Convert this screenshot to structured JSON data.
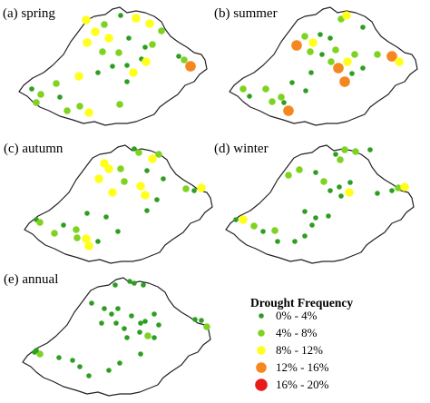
{
  "panels": [
    {
      "id": "spring",
      "label": "(a) spring",
      "stations": [
        [
          95,
          22,
          3
        ],
        [
          115,
          27,
          2
        ],
        [
          133,
          17,
          1
        ],
        [
          150,
          20,
          3
        ],
        [
          165,
          26,
          3
        ],
        [
          178,
          34,
          2
        ],
        [
          197,
          62,
          1
        ],
        [
          105,
          35,
          3
        ],
        [
          96,
          47,
          3
        ],
        [
          120,
          42,
          3
        ],
        [
          113,
          57,
          2
        ],
        [
          131,
          58,
          2
        ],
        [
          108,
          80,
          1
        ],
        [
          140,
          72,
          1
        ],
        [
          147,
          80,
          3
        ],
        [
          156,
          65,
          1
        ],
        [
          161,
          68,
          3
        ],
        [
          203,
          66,
          2
        ],
        [
          210,
          73,
          4
        ],
        [
          87,
          84,
          3
        ],
        [
          62,
          92,
          2
        ],
        [
          35,
          98,
          1
        ],
        [
          45,
          104,
          2
        ],
        [
          40,
          113,
          2
        ],
        [
          66,
          107,
          1
        ],
        [
          74,
          122,
          2
        ],
        [
          88,
          117,
          2
        ],
        [
          98,
          124,
          3
        ],
        [
          132,
          115,
          2
        ],
        [
          160,
          52,
          1
        ],
        [
          168,
          49,
          2
        ],
        [
          142,
          42,
          1
        ],
        [
          124,
          73,
          1
        ],
        [
          140,
          90,
          1
        ]
      ]
    },
    {
      "id": "summer",
      "label": "(b) summer",
      "stations": [
        [
          327,
          50,
          4
        ],
        [
          336,
          40,
          2
        ],
        [
          345,
          47,
          3
        ],
        [
          353,
          38,
          1
        ],
        [
          376,
          21,
          2
        ],
        [
          382,
          17,
          3
        ],
        [
          400,
          30,
          1
        ],
        [
          355,
          60,
          1
        ],
        [
          370,
          55,
          2
        ],
        [
          373,
          75,
          4
        ],
        [
          383,
          68,
          3
        ],
        [
          380,
          90,
          4
        ],
        [
          388,
          81,
          1
        ],
        [
          432,
          62,
          4
        ],
        [
          440,
          68,
          3
        ],
        [
          416,
          60,
          2
        ],
        [
          268,
          98,
          2
        ],
        [
          275,
          106,
          1
        ],
        [
          293,
          98,
          2
        ],
        [
          300,
          112,
          2
        ],
        [
          313,
          113,
          1
        ],
        [
          318,
          122,
          4
        ],
        [
          337,
          100,
          1
        ],
        [
          343,
          80,
          1
        ],
        [
          342,
          57,
          2
        ],
        [
          364,
          42,
          1
        ],
        [
          391,
          60,
          2
        ],
        [
          365,
          68,
          2
        ],
        [
          400,
          75,
          1
        ],
        [
          322,
          91,
          1
        ],
        [
          310,
          107,
          2
        ]
      ]
    },
    {
      "id": "autumn",
      "label": "(c) autumn",
      "stations": [
        [
          148,
          164,
          1
        ],
        [
          153,
          168,
          2
        ],
        [
          168,
          175,
          3
        ],
        [
          175,
          170,
          2
        ],
        [
          115,
          180,
          3
        ],
        [
          120,
          186,
          3
        ],
        [
          133,
          186,
          2
        ],
        [
          109,
          197,
          3
        ],
        [
          124,
          212,
          3
        ],
        [
          137,
          200,
          2
        ],
        [
          155,
          205,
          3
        ],
        [
          160,
          215,
          3
        ],
        [
          162,
          188,
          1
        ],
        [
          180,
          197,
          1
        ],
        [
          205,
          208,
          2
        ],
        [
          214,
          210,
          1
        ],
        [
          222,
          207,
          3
        ],
        [
          173,
          220,
          1
        ],
        [
          40,
          242,
          1
        ],
        [
          44,
          245,
          2
        ],
        [
          70,
          248,
          1
        ],
        [
          60,
          257,
          2
        ],
        [
          84,
          253,
          2
        ],
        [
          85,
          262,
          2
        ],
        [
          95,
          263,
          3
        ],
        [
          98,
          271,
          3
        ],
        [
          108,
          266,
          1
        ],
        [
          130,
          255,
          1
        ],
        [
          162,
          232,
          1
        ],
        [
          96,
          235,
          1
        ],
        [
          117,
          239,
          1
        ]
      ]
    },
    {
      "id": "winter",
      "label": "(d) winter",
      "stations": [
        [
          370,
          170,
          1
        ],
        [
          375,
          176,
          2
        ],
        [
          380,
          165,
          2
        ],
        [
          392,
          167,
          2
        ],
        [
          408,
          165,
          1
        ],
        [
          318,
          193,
          2
        ],
        [
          330,
          187,
          2
        ],
        [
          348,
          190,
          1
        ],
        [
          357,
          200,
          2
        ],
        [
          364,
          210,
          1
        ],
        [
          374,
          206,
          1
        ],
        [
          376,
          216,
          1
        ],
        [
          386,
          201,
          1
        ],
        [
          385,
          212,
          3
        ],
        [
          432,
          210,
          1
        ],
        [
          439,
          207,
          2
        ],
        [
          446,
          206,
          3
        ],
        [
          416,
          213,
          1
        ],
        [
          260,
          242,
          1
        ],
        [
          268,
          242,
          3
        ],
        [
          280,
          249,
          2
        ],
        [
          290,
          255,
          1
        ],
        [
          303,
          254,
          2
        ],
        [
          306,
          266,
          1
        ],
        [
          325,
          266,
          1
        ],
        [
          336,
          260,
          1
        ],
        [
          336,
          233,
          1
        ],
        [
          348,
          240,
          1
        ],
        [
          362,
          238,
          1
        ],
        [
          344,
          248,
          1
        ]
      ]
    },
    {
      "id": "annual",
      "label": "(e) annual",
      "stations": [
        [
          143,
          310,
          1
        ],
        [
          148,
          312,
          1
        ],
        [
          158,
          314,
          1
        ],
        [
          127,
          314,
          1
        ],
        [
          101,
          334,
          1
        ],
        [
          115,
          340,
          1
        ],
        [
          123,
          346,
          1
        ],
        [
          130,
          340,
          1
        ],
        [
          145,
          348,
          1
        ],
        [
          155,
          356,
          1
        ],
        [
          160,
          354,
          1
        ],
        [
          170,
          346,
          1
        ],
        [
          175,
          358,
          1
        ],
        [
          154,
          366,
          1
        ],
        [
          163,
          370,
          2
        ],
        [
          170,
          372,
          1
        ],
        [
          137,
          362,
          1
        ],
        [
          128,
          356,
          1
        ],
        [
          140,
          372,
          1
        ],
        [
          112,
          356,
          1
        ],
        [
          215,
          352,
          1
        ],
        [
          222,
          353,
          1
        ],
        [
          228,
          360,
          2
        ],
        [
          38,
          388,
          1
        ],
        [
          44,
          390,
          2
        ],
        [
          40,
          386,
          1
        ],
        [
          65,
          394,
          1
        ],
        [
          80,
          397,
          1
        ],
        [
          88,
          404,
          1
        ],
        [
          98,
          414,
          1
        ],
        [
          120,
          408,
          1
        ],
        [
          132,
          400,
          1
        ],
        [
          155,
          390,
          1
        ]
      ]
    }
  ],
  "legend": {
    "title": "Drought Frequency",
    "classes": [
      {
        "label": "0% - 4%",
        "color": "#2e9e23",
        "radius": 2.8
      },
      {
        "label": "4% - 8%",
        "color": "#7ed321",
        "radius": 3.8
      },
      {
        "label": "8% - 12%",
        "color": "#ffff1e",
        "radius": 4.8
      },
      {
        "label": "12% - 16%",
        "color": "#f5871f",
        "radius": 5.8
      },
      {
        "label": "16% - 20%",
        "color": "#e81b1b",
        "radius": 6.8
      }
    ]
  }
}
